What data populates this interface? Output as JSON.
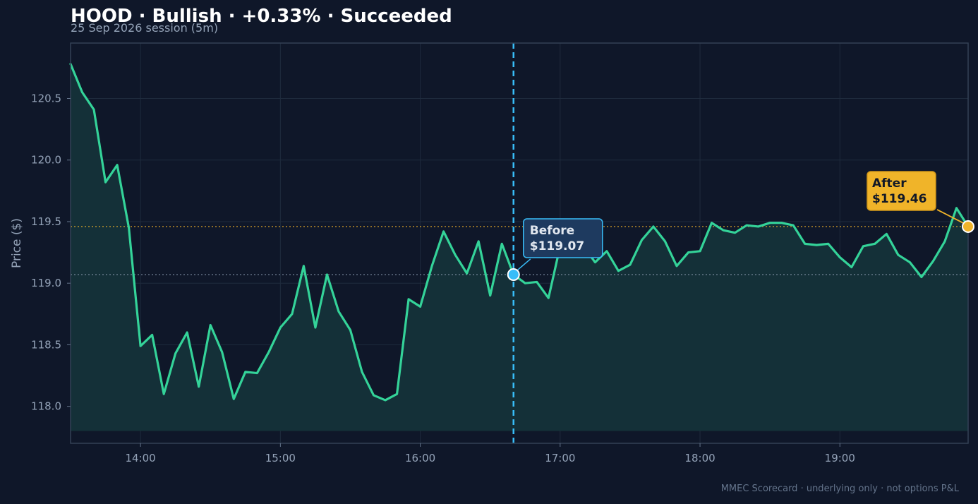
{
  "header": {
    "title": "HOOD · Bullish · +0.33% · Succeeded",
    "subtitle": "25 Sep 2026 session (5m)"
  },
  "footer": {
    "text": "MMEC Scorecard · underlying only · not options P&L"
  },
  "colors": {
    "background": "#0f1729",
    "line": "#34d399",
    "area": "#143038",
    "before_marker": "#38bdf8",
    "after_marker": "#f0b429",
    "grid": "#1f2b3d"
  },
  "chart_data": {
    "type": "line",
    "title": "HOOD · Bullish · +0.33% · Succeeded",
    "subtitle": "25 Sep 2026 session (5m)",
    "xlabel": "",
    "ylabel": "Price ($)",
    "x_ticks": [
      "14:00",
      "15:00",
      "16:00",
      "17:00",
      "18:00",
      "19:00"
    ],
    "y_ticks": [
      "118.0",
      "118.5",
      "119.0",
      "119.5",
      "120.0",
      "120.5"
    ],
    "ylim": [
      117.7,
      120.95
    ],
    "xlim": [
      "13:30",
      "19:55"
    ],
    "grid": true,
    "series": [
      {
        "x": [
          "13:30",
          "13:35",
          "13:40",
          "13:45",
          "13:50",
          "13:55",
          "14:00",
          "14:05",
          "14:10",
          "14:15",
          "14:20",
          "14:25",
          "14:30",
          "14:35",
          "14:40",
          "14:45",
          "14:50",
          "14:55",
          "15:00",
          "15:05",
          "15:10",
          "15:15",
          "15:20",
          "15:25",
          "15:30",
          "15:35",
          "15:40",
          "15:45",
          "15:50",
          "15:55",
          "16:00",
          "16:05",
          "16:10",
          "16:15",
          "16:20",
          "16:25",
          "16:30",
          "16:35",
          "16:40",
          "16:45",
          "16:50",
          "16:55",
          "17:00",
          "17:05",
          "17:10",
          "17:15",
          "17:20",
          "17:25",
          "17:30",
          "17:35",
          "17:40",
          "17:45",
          "17:50",
          "17:55",
          "18:00",
          "18:05",
          "18:10",
          "18:15",
          "18:20",
          "18:25",
          "18:30",
          "18:35",
          "18:40",
          "18:45",
          "18:50",
          "18:55",
          "19:00",
          "19:05",
          "19:10",
          "19:15",
          "19:20",
          "19:25",
          "19:30",
          "19:35",
          "19:40",
          "19:45",
          "19:50",
          "19:55"
        ],
        "values": [
          120.78,
          120.55,
          120.41,
          119.82,
          119.96,
          119.45,
          118.49,
          118.58,
          118.1,
          118.43,
          118.6,
          118.16,
          118.66,
          118.44,
          118.06,
          118.28,
          118.27,
          118.44,
          118.64,
          118.75,
          119.14,
          118.64,
          119.07,
          118.77,
          118.62,
          118.28,
          118.09,
          118.05,
          118.1,
          118.87,
          118.81,
          119.14,
          119.42,
          119.23,
          119.08,
          119.34,
          118.9,
          119.32,
          119.07,
          119.0,
          119.01,
          118.88,
          119.3,
          119.24,
          119.3,
          119.17,
          119.26,
          119.1,
          119.15,
          119.35,
          119.46,
          119.34,
          119.14,
          119.25,
          119.26,
          119.49,
          119.43,
          119.41,
          119.47,
          119.46,
          119.49,
          119.49,
          119.47,
          119.32,
          119.31,
          119.32,
          119.21,
          119.13,
          119.3,
          119.32,
          119.4,
          119.23,
          119.17,
          119.05,
          119.18,
          119.34,
          119.61,
          119.46
        ]
      }
    ],
    "events": {
      "entry_time": "16:40",
      "before": {
        "label": "Before",
        "value_text": "$119.07",
        "value": 119.07
      },
      "after": {
        "label": "After",
        "value_text": "$119.46",
        "value": 119.46
      }
    }
  }
}
